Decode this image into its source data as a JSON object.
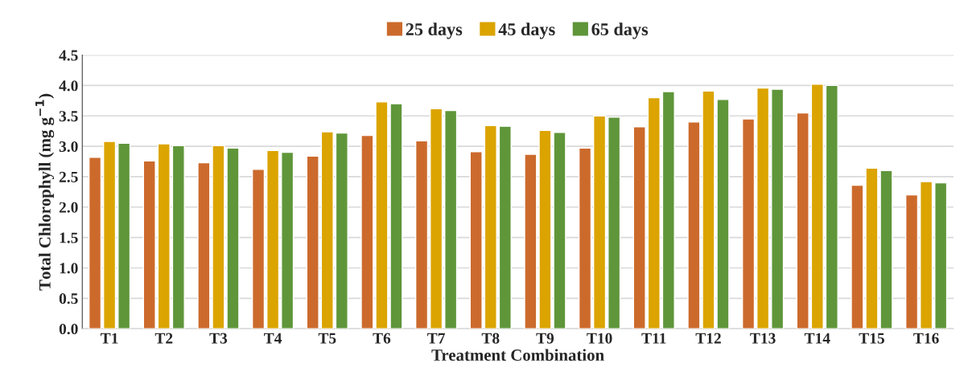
{
  "chart_data": {
    "type": "bar",
    "xlabel": "Treatment Combination",
    "ylabel": "Total Chlorophyll (mg g$^{−1}$)",
    "categories": [
      "T1",
      "T2",
      "T3",
      "T4",
      "T5",
      "T6",
      "T7",
      "T8",
      "T9",
      "T10",
      "T11",
      "T12",
      "T13",
      "T14",
      "T15",
      "T16"
    ],
    "series": [
      {
        "name": "25 days",
        "color": "#cc6a2c",
        "values": [
          2.82,
          2.76,
          2.73,
          2.62,
          2.84,
          3.18,
          3.09,
          2.91,
          2.87,
          2.97,
          3.32,
          3.4,
          3.45,
          3.55,
          2.36,
          2.2
        ]
      },
      {
        "name": "45 days",
        "color": "#dba400",
        "values": [
          3.08,
          3.04,
          3.01,
          2.93,
          3.24,
          3.73,
          3.62,
          3.34,
          3.26,
          3.5,
          3.8,
          3.91,
          3.96,
          4.02,
          2.64,
          2.42
        ]
      },
      {
        "name": "65 days",
        "color": "#5f963a",
        "values": [
          3.05,
          3.01,
          2.97,
          2.9,
          3.22,
          3.7,
          3.59,
          3.33,
          3.23,
          3.48,
          3.9,
          3.77,
          3.94,
          4.0,
          2.6,
          2.4
        ]
      }
    ],
    "ylim": [
      0,
      4.5
    ],
    "yticks": [
      {
        "value": 0,
        "label": "0.0"
      },
      0.5,
      {
        "value": 1,
        "label": "1.0"
      },
      1.5,
      {
        "value": 2,
        "label": "2.0"
      },
      2.5,
      {
        "value": 3,
        "label": "3.0"
      },
      3.5,
      {
        "value": 4,
        "label": "4.0"
      },
      4.5
    ],
    "grid": "y",
    "legend": "top"
  }
}
